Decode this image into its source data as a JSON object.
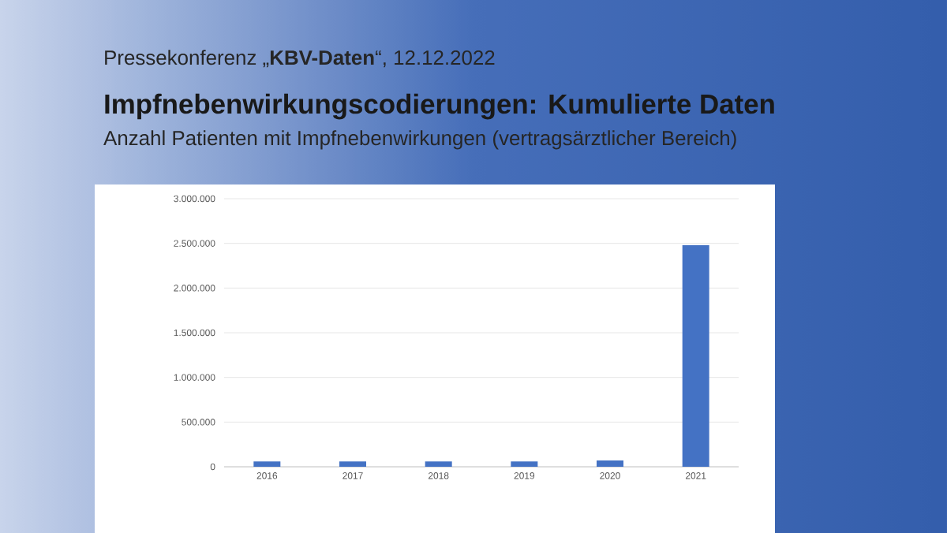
{
  "chart_data": {
    "type": "bar",
    "title": "Impfnebenwirkungscodierungen: Kumulierte Daten",
    "subtitle": "Anzahl Patienten mit Impfnebenwirkungen (vertragsärztlicher Bereich)",
    "annotations": [
      "Pressekonferenz „**KBV-Daten**“, 12.12.2022"
    ],
    "categories": [
      "2016",
      "2017",
      "2018",
      "2019",
      "2020",
      "2021"
    ],
    "values": [
      60000,
      60000,
      60000,
      60000,
      70000,
      2480000
    ],
    "color": "#4472c4",
    "ylim": [
      0,
      3000000
    ],
    "yticks": [
      {
        "value": 0,
        "label": "0"
      },
      {
        "value": 500000,
        "label": "500.000"
      },
      {
        "value": 1000000,
        "label": "1.000.000"
      },
      {
        "value": 1500000,
        "label": "1.500.000"
      },
      {
        "value": 2000000,
        "label": "2.000.000"
      },
      {
        "value": 2500000,
        "label": "2.500.000"
      },
      {
        "value": 3000000,
        "label": "3.000.000"
      }
    ],
    "grid": "y"
  }
}
